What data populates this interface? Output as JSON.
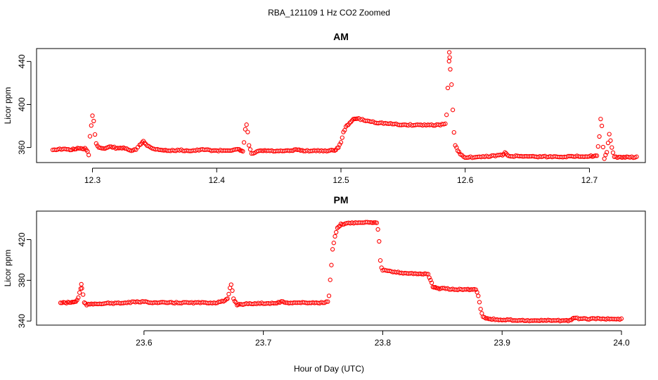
{
  "figure": {
    "title": "RBA_121109  1 Hz CO2 Zoomed",
    "xlabel": "Hour of Day (UTC)"
  },
  "chart_data": [
    {
      "type": "scatter",
      "title": "AM",
      "ylabel": "Licor ppm",
      "xlim": [
        12.255,
        12.745
      ],
      "ylim": [
        346,
        452
      ],
      "xticks": [
        12.3,
        12.4,
        12.5,
        12.6,
        12.7
      ],
      "xtick_labels": [
        "12.3",
        "12.4",
        "12.5",
        "12.6",
        "12.7"
      ],
      "yticks": [
        360,
        400,
        440
      ],
      "ytick_labels": [
        "360",
        "400",
        "440"
      ],
      "marker_color": "#ff0000",
      "points": [
        [
          12.268,
          358
        ],
        [
          12.275,
          358.5
        ],
        [
          12.282,
          358
        ],
        [
          12.288,
          359
        ],
        [
          12.294,
          359
        ],
        [
          12.296,
          356
        ],
        [
          12.297,
          353
        ],
        [
          12.298,
          370
        ],
        [
          12.299,
          380
        ],
        [
          12.3,
          390
        ],
        [
          12.301,
          385
        ],
        [
          12.302,
          372
        ],
        [
          12.303,
          364
        ],
        [
          12.305,
          360
        ],
        [
          12.31,
          359
        ],
        [
          12.315,
          361
        ],
        [
          12.32,
          359
        ],
        [
          12.325,
          360
        ],
        [
          12.33,
          357
        ],
        [
          12.335,
          358
        ],
        [
          12.338,
          362
        ],
        [
          12.341,
          366
        ],
        [
          12.344,
          362
        ],
        [
          12.348,
          359
        ],
        [
          12.355,
          358
        ],
        [
          12.36,
          357
        ],
        [
          12.37,
          357.5
        ],
        [
          12.38,
          357
        ],
        [
          12.39,
          358
        ],
        [
          12.4,
          357
        ],
        [
          12.41,
          357.5
        ],
        [
          12.418,
          358
        ],
        [
          12.421,
          356
        ],
        [
          12.422,
          365
        ],
        [
          12.423,
          377
        ],
        [
          12.424,
          381
        ],
        [
          12.425,
          374
        ],
        [
          12.426,
          362
        ],
        [
          12.428,
          354
        ],
        [
          12.435,
          357
        ],
        [
          12.44,
          357
        ],
        [
          12.45,
          356.5
        ],
        [
          12.46,
          357
        ],
        [
          12.465,
          358
        ],
        [
          12.47,
          357
        ],
        [
          12.48,
          357
        ],
        [
          12.49,
          357
        ],
        [
          12.495,
          357.5
        ],
        [
          12.498,
          360
        ],
        [
          12.5,
          365
        ],
        [
          12.502,
          374
        ],
        [
          12.504,
          379
        ],
        [
          12.507,
          383
        ],
        [
          12.51,
          386
        ],
        [
          12.513,
          387
        ],
        [
          12.52,
          385
        ],
        [
          12.53,
          383
        ],
        [
          12.54,
          382
        ],
        [
          12.55,
          381
        ],
        [
          12.56,
          381
        ],
        [
          12.57,
          381
        ],
        [
          12.58,
          381
        ],
        [
          12.584,
          382
        ],
        [
          12.585,
          390
        ],
        [
          12.586,
          415
        ],
        [
          12.587,
          440
        ],
        [
          12.5872,
          448
        ],
        [
          12.5875,
          444
        ],
        [
          12.588,
          433
        ],
        [
          12.589,
          418
        ],
        [
          12.59,
          395
        ],
        [
          12.591,
          374
        ],
        [
          12.592,
          362
        ],
        [
          12.594,
          357
        ],
        [
          12.596,
          354
        ],
        [
          12.6,
          351
        ],
        [
          12.61,
          351
        ],
        [
          12.62,
          352
        ],
        [
          12.63,
          353
        ],
        [
          12.632,
          355
        ],
        [
          12.635,
          352
        ],
        [
          12.645,
          352
        ],
        [
          12.66,
          351.5
        ],
        [
          12.68,
          351.5
        ],
        [
          12.7,
          352
        ],
        [
          12.706,
          352
        ],
        [
          12.708,
          370
        ],
        [
          12.709,
          386
        ],
        [
          12.71,
          380
        ],
        [
          12.711,
          360
        ],
        [
          12.712,
          350
        ],
        [
          12.714,
          356
        ],
        [
          12.716,
          372
        ],
        [
          12.718,
          360
        ],
        [
          12.72,
          351
        ],
        [
          12.725,
          351
        ],
        [
          12.73,
          351
        ],
        [
          12.738,
          351
        ]
      ]
    },
    {
      "type": "scatter",
      "title": "PM",
      "ylabel": "Licor ppm",
      "xlim": [
        23.51,
        24.02
      ],
      "ylim": [
        336,
        448
      ],
      "xticks": [
        23.6,
        23.7,
        23.8,
        23.9,
        24.0
      ],
      "xtick_labels": [
        "23.6",
        "23.7",
        "23.8",
        "23.9",
        "24.0"
      ],
      "yticks": [
        340,
        380,
        420
      ],
      "ytick_labels": [
        "340",
        "380",
        "420"
      ],
      "marker_color": "#ff0000",
      "points": [
        [
          23.53,
          358
        ],
        [
          23.535,
          358
        ],
        [
          23.54,
          358.5
        ],
        [
          23.543,
          359
        ],
        [
          23.545,
          363
        ],
        [
          23.546,
          368
        ],
        [
          23.547,
          372
        ],
        [
          23.5475,
          376
        ],
        [
          23.548,
          372
        ],
        [
          23.549,
          366
        ],
        [
          23.55,
          358
        ],
        [
          23.552,
          356
        ],
        [
          23.56,
          357
        ],
        [
          23.57,
          357.5
        ],
        [
          23.58,
          357.5
        ],
        [
          23.59,
          358.5
        ],
        [
          23.6,
          359
        ],
        [
          23.61,
          358
        ],
        [
          23.62,
          358
        ],
        [
          23.63,
          358
        ],
        [
          23.64,
          358
        ],
        [
          23.65,
          358
        ],
        [
          23.66,
          358
        ],
        [
          23.668,
          360
        ],
        [
          23.67,
          362
        ],
        [
          23.671,
          366
        ],
        [
          23.672,
          372
        ],
        [
          23.673,
          376
        ],
        [
          23.674,
          370
        ],
        [
          23.675,
          362
        ],
        [
          23.678,
          356
        ],
        [
          23.68,
          356.5
        ],
        [
          23.69,
          357
        ],
        [
          23.7,
          357.5
        ],
        [
          23.71,
          357.5
        ],
        [
          23.715,
          359
        ],
        [
          23.72,
          358
        ],
        [
          23.73,
          358
        ],
        [
          23.74,
          358
        ],
        [
          23.75,
          358
        ],
        [
          23.754,
          359
        ],
        [
          23.755,
          365
        ],
        [
          23.756,
          380
        ],
        [
          23.757,
          395
        ],
        [
          23.758,
          410
        ],
        [
          23.76,
          423
        ],
        [
          23.762,
          431
        ],
        [
          23.765,
          435
        ],
        [
          23.77,
          436
        ],
        [
          23.78,
          437
        ],
        [
          23.79,
          437
        ],
        [
          23.795,
          437
        ],
        [
          23.796,
          430
        ],
        [
          23.797,
          418
        ],
        [
          23.798,
          400
        ],
        [
          23.799,
          392
        ],
        [
          23.8,
          390
        ],
        [
          23.81,
          388
        ],
        [
          23.82,
          387
        ],
        [
          23.83,
          386.5
        ],
        [
          23.838,
          386
        ],
        [
          23.84,
          380
        ],
        [
          23.842,
          374
        ],
        [
          23.845,
          372
        ],
        [
          23.85,
          372
        ],
        [
          23.86,
          371
        ],
        [
          23.87,
          371
        ],
        [
          23.878,
          371
        ],
        [
          23.88,
          365
        ],
        [
          23.882,
          352
        ],
        [
          23.884,
          344
        ],
        [
          23.89,
          342
        ],
        [
          23.9,
          341
        ],
        [
          23.91,
          341
        ],
        [
          23.92,
          340.5
        ],
        [
          23.93,
          340.5
        ],
        [
          23.94,
          340.5
        ],
        [
          23.95,
          340.5
        ],
        [
          23.958,
          340.5
        ],
        [
          23.96,
          343
        ],
        [
          23.97,
          342
        ],
        [
          23.98,
          342.5
        ],
        [
          23.99,
          342
        ],
        [
          24.0,
          342
        ]
      ]
    }
  ]
}
